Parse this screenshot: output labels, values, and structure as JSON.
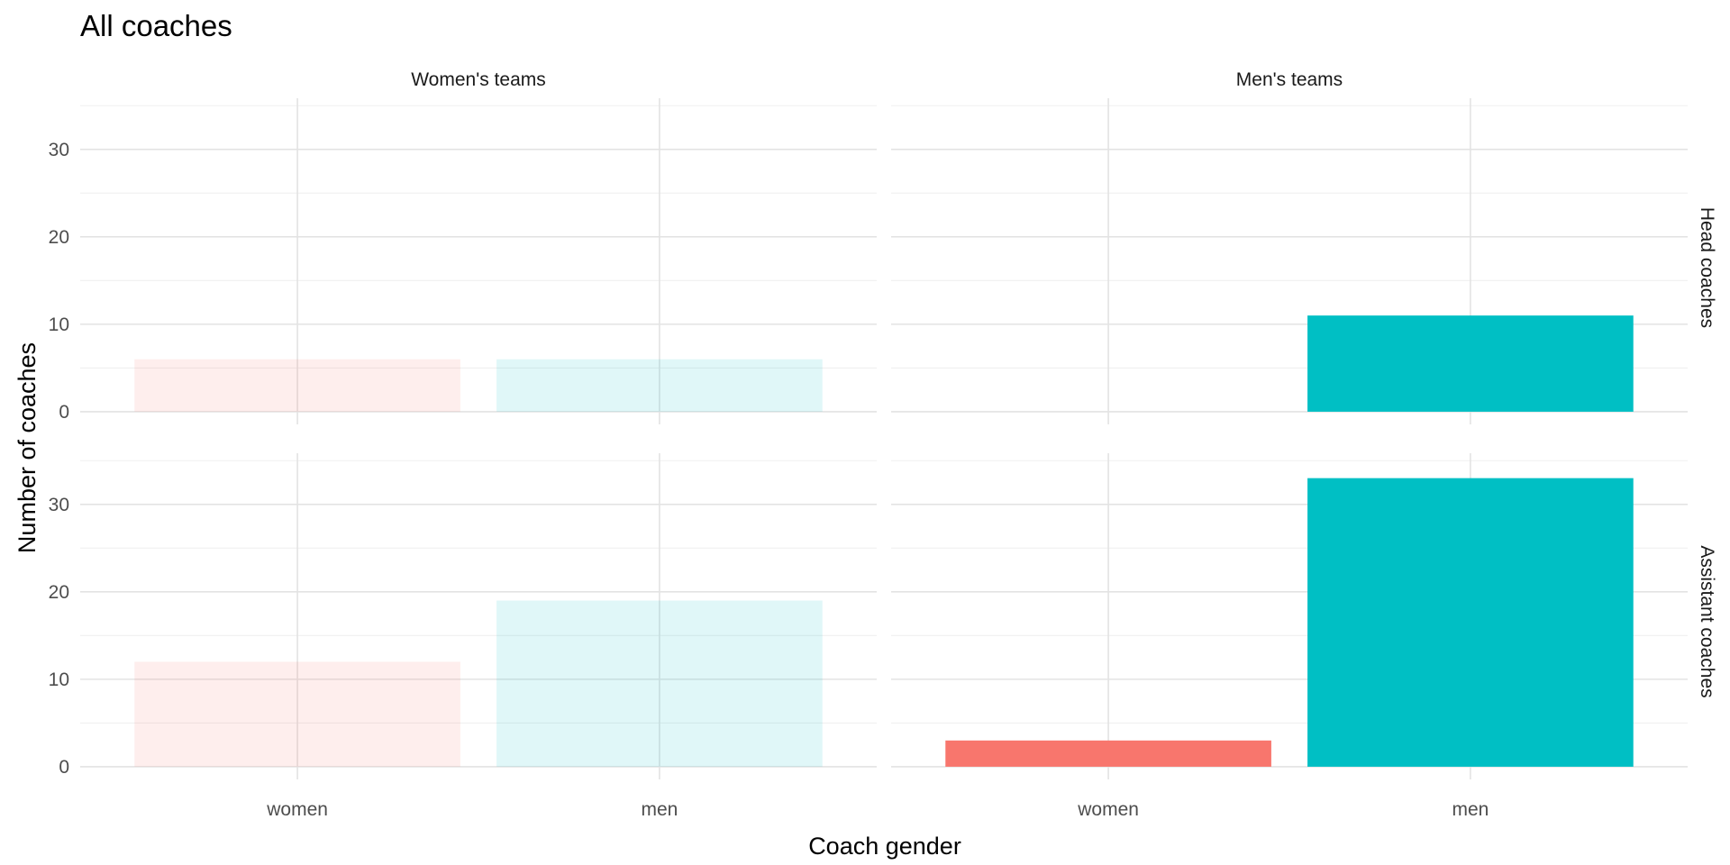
{
  "chart_data": {
    "type": "bar",
    "title": "All coaches",
    "xlabel": "Coach gender",
    "ylabel": "Number of coaches",
    "categories": [
      "women",
      "men"
    ],
    "ylim": [
      0,
      33
    ],
    "yticks": [
      0,
      10,
      20,
      30
    ],
    "grid": true,
    "legend": "none",
    "colors": {
      "women": "#F8766D",
      "men": "#00BFC4"
    },
    "faded_alpha": 0.12,
    "columns": [
      "Women's teams",
      "Men's teams"
    ],
    "rows": [
      "Head coaches",
      "Assistant coaches"
    ],
    "panels": [
      {
        "column": "Women's teams",
        "row": "Head coaches",
        "faded": true,
        "values": [
          6,
          6
        ]
      },
      {
        "column": "Men's teams",
        "row": "Head coaches",
        "faded": false,
        "values": [
          0,
          11
        ]
      },
      {
        "column": "Women's teams",
        "row": "Assistant coaches",
        "faded": true,
        "values": [
          12,
          19
        ]
      },
      {
        "column": "Men's teams",
        "row": "Assistant coaches",
        "faded": false,
        "values": [
          3,
          33
        ]
      }
    ]
  }
}
